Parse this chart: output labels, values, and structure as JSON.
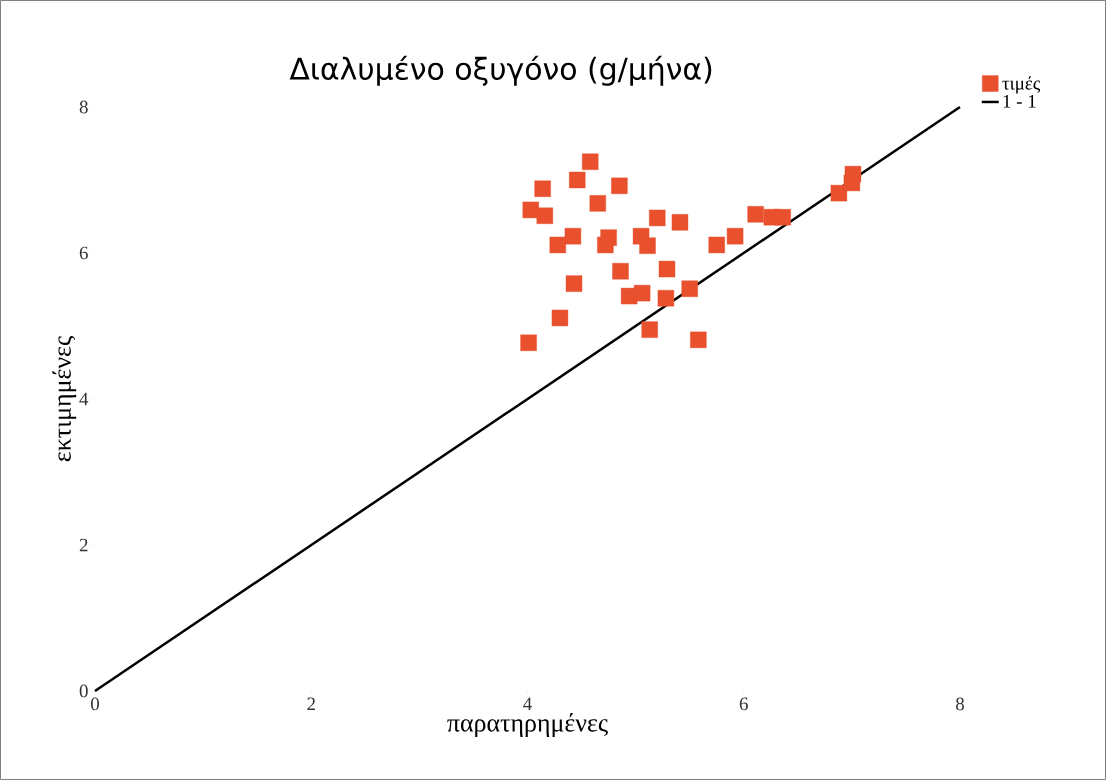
{
  "chart_data": {
    "type": "scatter",
    "title": "Διαλυμένο οξυγόνο (g/μήνα)",
    "xlabel": "παρατηρημένες",
    "ylabel": "εκτιμημένες",
    "xlim": [
      0,
      8
    ],
    "ylim": [
      0,
      8
    ],
    "xticks": [
      0,
      2,
      4,
      6,
      8
    ],
    "yticks": [
      0,
      2,
      4,
      6,
      8
    ],
    "grid": false,
    "legend": "top right",
    "marker": "square",
    "series": [
      {
        "name": "τιμές",
        "color": "#e8502e",
        "x": [
          4.03,
          4.14,
          4.16,
          4.28,
          4.42,
          4.43,
          4.3,
          4.01,
          4.46,
          4.58,
          4.65,
          4.85,
          4.72,
          4.75,
          4.86,
          4.94,
          5.06,
          5.05,
          5.11,
          5.2,
          5.29,
          5.28,
          5.13,
          5.41,
          5.5,
          5.58,
          5.75,
          5.92,
          6.11,
          6.26,
          6.36,
          6.88,
          7.01,
          7.0
        ],
        "values": [
          6.59,
          6.88,
          6.51,
          6.11,
          6.23,
          5.58,
          5.11,
          4.77,
          7.0,
          7.25,
          6.68,
          6.92,
          6.11,
          6.21,
          5.75,
          5.41,
          5.45,
          6.23,
          6.1,
          6.48,
          5.78,
          5.38,
          4.95,
          6.42,
          5.51,
          4.81,
          6.11,
          6.23,
          6.53,
          6.49,
          6.49,
          6.82,
          7.08,
          6.96
        ]
      },
      {
        "name": "1 - 1",
        "type": "line",
        "color": "#000000",
        "marker": "none",
        "x": [
          0,
          8
        ],
        "values": [
          0,
          8
        ]
      }
    ]
  }
}
